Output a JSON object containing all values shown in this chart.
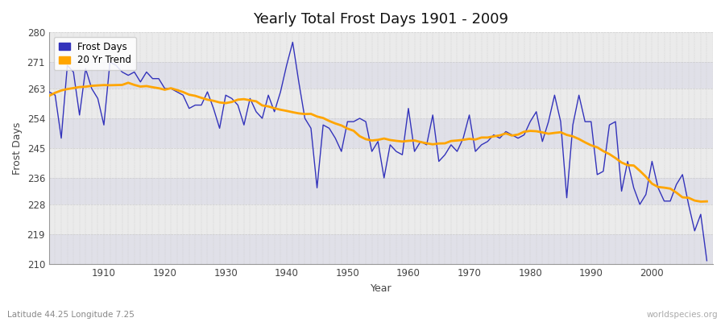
{
  "title": "Yearly Total Frost Days 1901 - 2009",
  "xlabel": "Year",
  "ylabel": "Frost Days",
  "subtitle": "Latitude 44.25 Longitude 7.25",
  "watermark": "worldspecies.org",
  "years": [
    1901,
    1902,
    1903,
    1904,
    1905,
    1906,
    1907,
    1908,
    1909,
    1910,
    1911,
    1912,
    1913,
    1914,
    1915,
    1916,
    1917,
    1918,
    1919,
    1920,
    1921,
    1922,
    1923,
    1924,
    1925,
    1926,
    1927,
    1928,
    1929,
    1930,
    1931,
    1932,
    1933,
    1934,
    1935,
    1936,
    1937,
    1938,
    1939,
    1940,
    1941,
    1942,
    1943,
    1944,
    1945,
    1946,
    1947,
    1948,
    1949,
    1950,
    1951,
    1952,
    1953,
    1954,
    1955,
    1956,
    1957,
    1958,
    1959,
    1960,
    1961,
    1962,
    1963,
    1964,
    1965,
    1966,
    1967,
    1968,
    1969,
    1970,
    1971,
    1972,
    1973,
    1974,
    1975,
    1976,
    1977,
    1978,
    1979,
    1980,
    1981,
    1982,
    1983,
    1984,
    1985,
    1986,
    1987,
    1988,
    1989,
    1990,
    1991,
    1992,
    1993,
    1994,
    1995,
    1996,
    1997,
    1998,
    1999,
    2000,
    2001,
    2002,
    2003,
    2004,
    2005,
    2006,
    2007,
    2008,
    2009
  ],
  "frost_days": [
    262,
    261,
    248,
    270,
    268,
    255,
    269,
    263,
    260,
    252,
    271,
    270,
    268,
    267,
    268,
    265,
    268,
    266,
    266,
    263,
    263,
    262,
    261,
    257,
    258,
    258,
    262,
    257,
    251,
    261,
    260,
    258,
    252,
    260,
    256,
    254,
    261,
    256,
    262,
    270,
    277,
    265,
    254,
    251,
    233,
    252,
    251,
    248,
    244,
    253,
    253,
    254,
    253,
    244,
    247,
    236,
    246,
    244,
    243,
    257,
    244,
    247,
    246,
    255,
    241,
    243,
    246,
    244,
    248,
    255,
    244,
    246,
    247,
    249,
    248,
    250,
    249,
    248,
    249,
    253,
    256,
    247,
    253,
    261,
    253,
    230,
    252,
    261,
    253,
    253,
    237,
    238,
    252,
    253,
    232,
    241,
    233,
    228,
    231,
    241,
    233,
    229,
    229,
    234,
    237,
    228,
    220,
    225,
    211
  ],
  "line_color": "#3333bb",
  "trend_color": "#FFA500",
  "fig_bg": "#ffffff",
  "plot_bg_light": "#ebebeb",
  "plot_bg_dark": "#e0e0e8",
  "grid_color": "#cccccc",
  "ylim": [
    210,
    280
  ],
  "yticks": [
    210,
    219,
    228,
    236,
    245,
    254,
    263,
    271,
    280
  ],
  "xlim": [
    1901,
    2010
  ],
  "xticks": [
    1910,
    1920,
    1930,
    1940,
    1950,
    1960,
    1970,
    1980,
    1990,
    2000
  ]
}
